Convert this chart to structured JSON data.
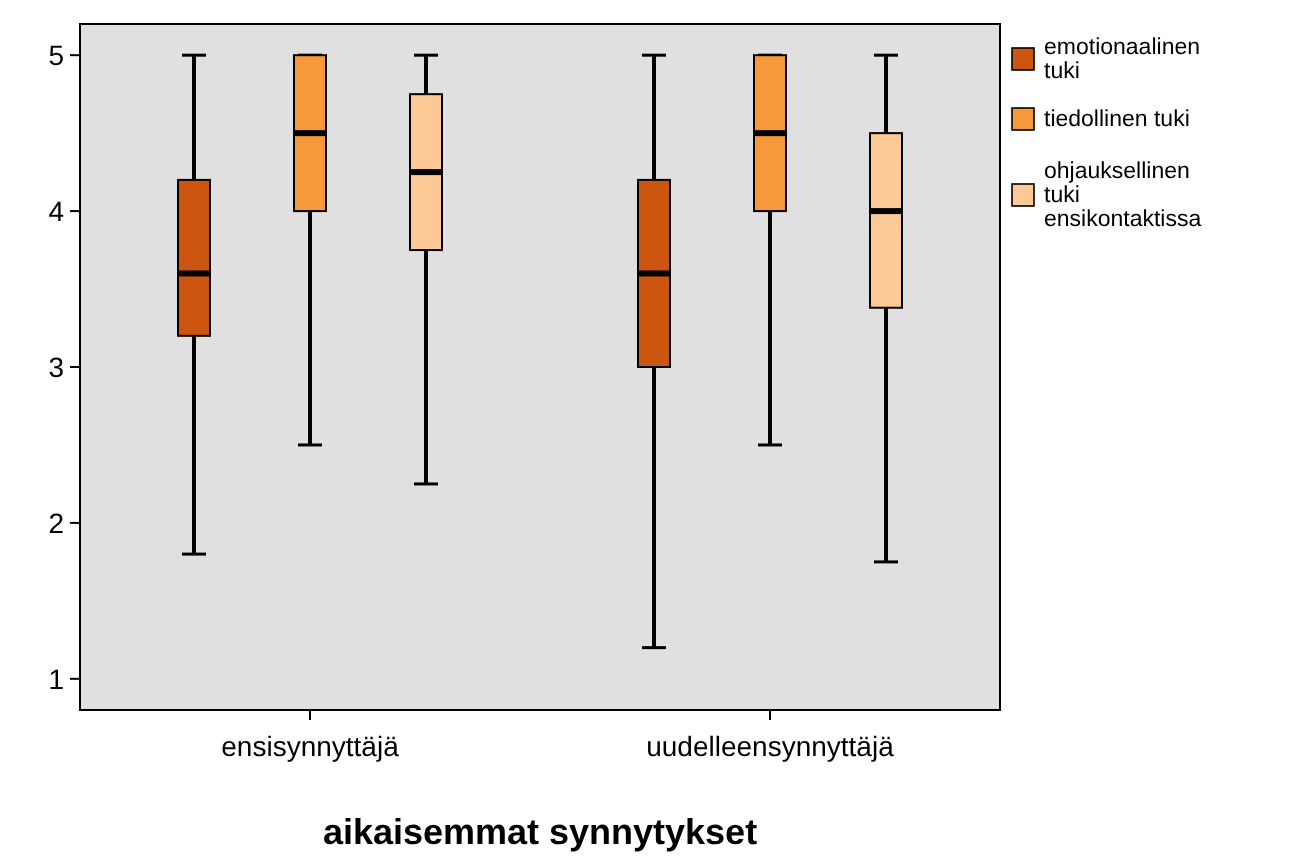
{
  "chart_data": {
    "type": "box",
    "xlabel": "aikaisemmat synnytykset",
    "categories": [
      "ensisynnyttäjä",
      "uudelleensynnyttäjä"
    ],
    "ylim": [
      0.8,
      5.2
    ],
    "yticks": [
      1,
      2,
      3,
      4,
      5
    ],
    "grid": false,
    "legend": "right",
    "series": [
      {
        "name": "emotionaalinen tuki",
        "color": "#cc5510",
        "boxes": [
          {
            "low": 1.8,
            "q1": 3.2,
            "median": 3.6,
            "q3": 4.2,
            "high": 5
          },
          {
            "low": 1.2,
            "q1": 3.0,
            "median": 3.6,
            "q3": 4.2,
            "high": 5
          }
        ]
      },
      {
        "name": "tiedollinen tuki",
        "color": "#f7993a",
        "boxes": [
          {
            "low": 2.5,
            "q1": 4.0,
            "median": 4.5,
            "q3": 5,
            "high": 5
          },
          {
            "low": 2.5,
            "q1": 4.0,
            "median": 4.5,
            "q3": 5,
            "high": 5
          }
        ]
      },
      {
        "name": "ohjauksellinen tuki ensikontaktissa",
        "color": "#fcc896",
        "boxes": [
          {
            "low": 2.25,
            "q1": 3.75,
            "median": 4.25,
            "q3": 4.75,
            "high": 5
          },
          {
            "low": 1.75,
            "q1": 3.38,
            "median": 4.0,
            "q3": 4.5,
            "high": 5
          }
        ]
      }
    ]
  }
}
